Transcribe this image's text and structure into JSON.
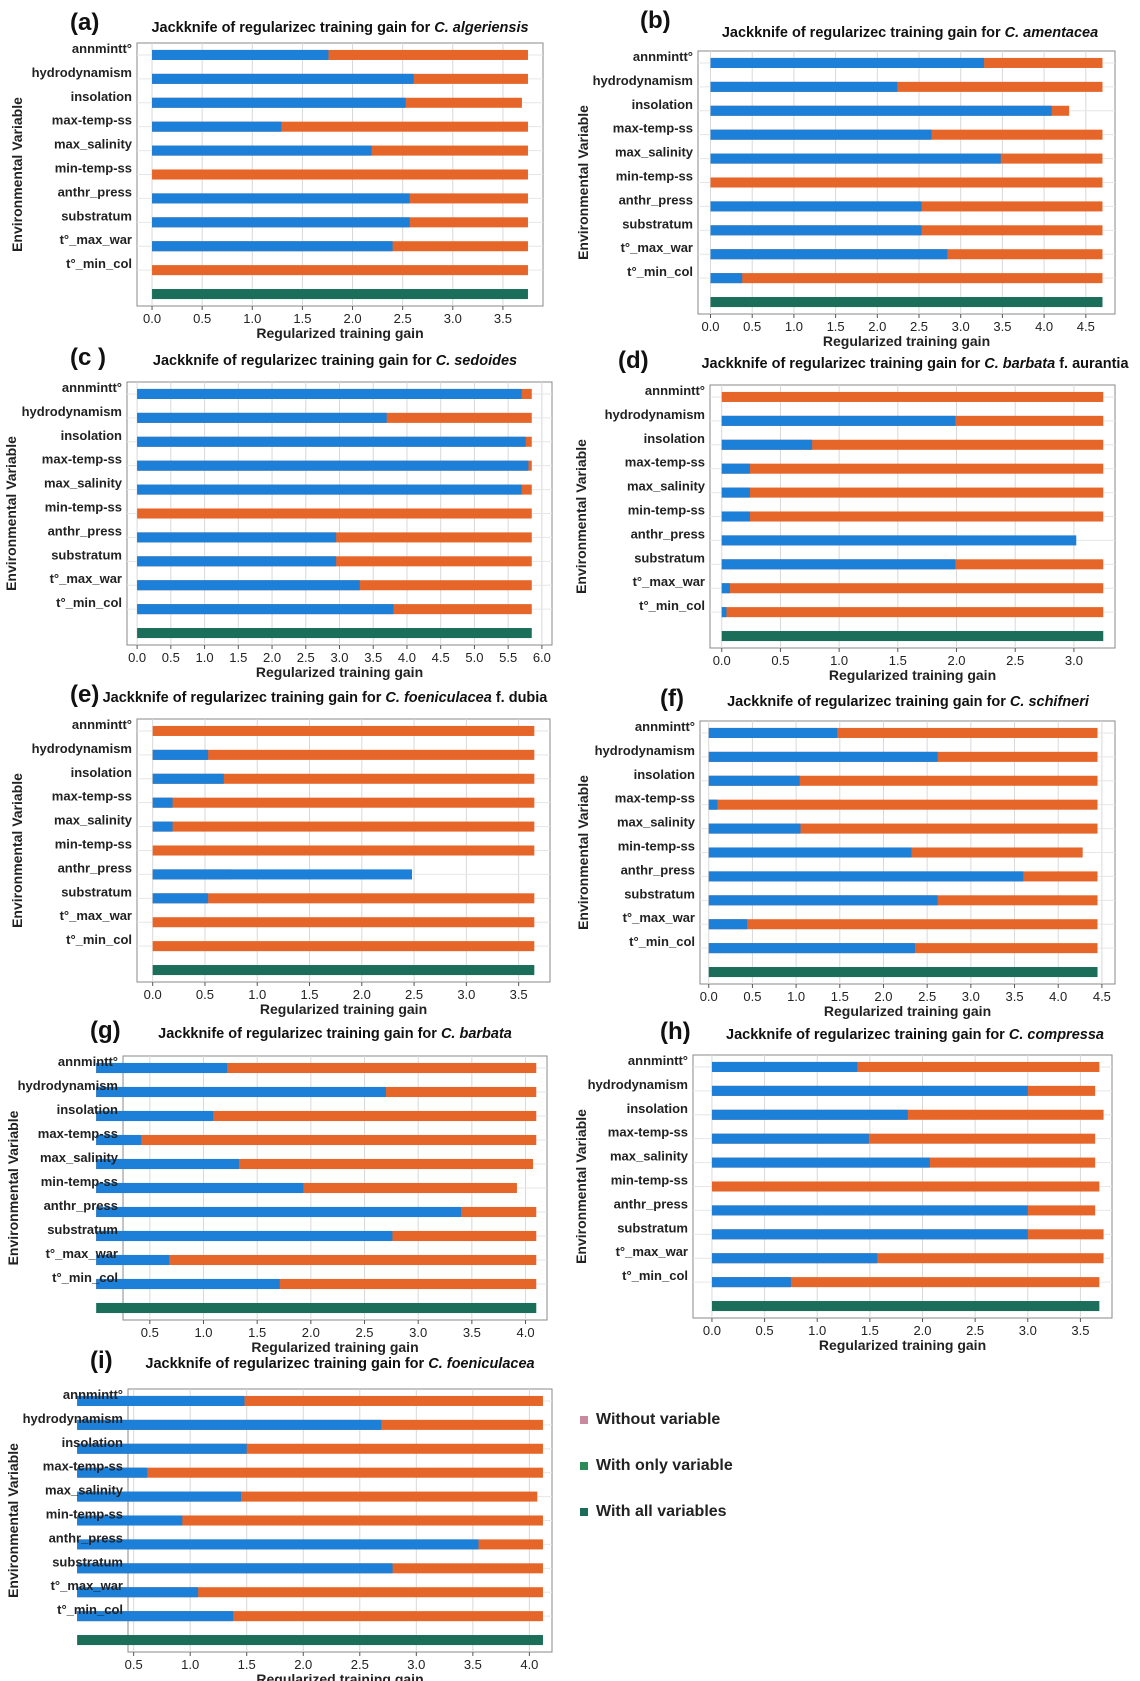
{
  "colors": {
    "without": "#E6662A",
    "with_only": "#1C7FD8",
    "all": "#1A6E5A"
  },
  "chart_data": [
    {
      "type": "bar",
      "panel_label": "(a)",
      "title_prefix": "Jackknife of regularizec training gain for ",
      "species": "C. algeriensis",
      "species_suffix": "",
      "xlabel": "Regularized training gain",
      "ylabel": "Environmental Variable",
      "xlim": [
        -0.15,
        3.9
      ],
      "x_ticks": [
        0.0,
        0.5,
        1.0,
        1.5,
        2.0,
        2.5,
        3.0,
        3.5
      ],
      "x_tick_labels": [
        "0.0",
        "0.5",
        "1.0",
        "1.5",
        "2.0",
        "2.5",
        "3.0",
        "3.5"
      ],
      "show_ylabel": true,
      "all_variables": 3.75,
      "categories": [
        "annmintt°",
        "hydrodynamism",
        "insolation",
        "max-temp-ss",
        "max_salinity",
        "min-temp-ss",
        "anthr_press",
        "substratum",
        "t°_max_war",
        "t°_min_col"
      ],
      "series": [
        {
          "name": "Without variable",
          "values": [
            3.75,
            3.75,
            3.69,
            3.75,
            3.75,
            3.75,
            3.75,
            3.75,
            3.75,
            3.75
          ]
        },
        {
          "name": "With only variable",
          "values": [
            1.76,
            2.61,
            2.53,
            1.29,
            2.19,
            0,
            2.57,
            2.57,
            2.4,
            0
          ]
        }
      ]
    },
    {
      "type": "bar",
      "panel_label": "(b)",
      "title_prefix": "Jackknife of regularizec training gain for ",
      "species": "C. amentacea",
      "species_suffix": "",
      "xlabel": "Regularized training gain",
      "ylabel": "Environmental Variable",
      "xlim": [
        -0.15,
        4.85
      ],
      "x_ticks": [
        0.0,
        0.5,
        1.0,
        1.5,
        2.0,
        2.5,
        3.0,
        3.5,
        4.0,
        4.5
      ],
      "x_tick_labels": [
        "0.0",
        "0.5",
        "1.0",
        "1.5",
        "2.0",
        "2.5",
        "3.0",
        "3.5",
        "4.0",
        "4.5"
      ],
      "show_ylabel": true,
      "all_variables": 4.7,
      "categories": [
        "annmintt°",
        "hydrodynamism",
        "insolation",
        "max-temp-ss",
        "max_salinity",
        "min-temp-ss",
        "anthr_press",
        "substratum",
        "t°_max_war",
        "t°_min_col"
      ],
      "series": [
        {
          "name": "Without variable",
          "values": [
            4.7,
            4.7,
            4.3,
            4.7,
            4.7,
            4.7,
            4.7,
            4.7,
            4.7,
            4.7
          ]
        },
        {
          "name": "With only variable",
          "values": [
            3.28,
            2.24,
            4.09,
            2.65,
            3.48,
            0,
            2.53,
            2.53,
            2.84,
            0.38
          ]
        }
      ]
    },
    {
      "type": "bar",
      "panel_label": "(c )",
      "title_prefix": "Jackknife of regularizec training gain for ",
      "species": "C. sedoides",
      "species_suffix": "",
      "xlabel": "Regularized training gain",
      "ylabel": "Environmental Variable",
      "xlim": [
        -0.15,
        6.15
      ],
      "x_ticks": [
        0.0,
        0.5,
        1.0,
        1.5,
        2.0,
        2.5,
        3.0,
        3.5,
        4.0,
        4.5,
        5.0,
        5.5,
        6.0
      ],
      "x_tick_labels": [
        "0.0",
        "0.5",
        "1.0",
        "1.5",
        "2.0",
        "2.5",
        "3.0",
        "3.5",
        "4.0",
        "4.5",
        "5.0",
        "5.5",
        "6.0"
      ],
      "show_ylabel": true,
      "all_variables": 5.85,
      "categories": [
        "annmintt°",
        "hydrodynamism",
        "insolation",
        "max-temp-ss",
        "max_salinity",
        "min-temp-ss",
        "anthr_press",
        "substratum",
        "t°_max_war",
        "t°_min_col"
      ],
      "series": [
        {
          "name": "Without variable",
          "values": [
            5.85,
            5.85,
            5.85,
            5.85,
            5.85,
            5.85,
            5.85,
            5.85,
            5.85,
            5.85
          ]
        },
        {
          "name": "With only variable",
          "values": [
            5.7,
            3.7,
            5.76,
            5.8,
            5.7,
            0,
            2.95,
            2.95,
            3.3,
            3.8
          ]
        }
      ]
    },
    {
      "type": "bar",
      "panel_label": "(d)",
      "title_prefix": "Jackknife of regularizec training gain for ",
      "species": "C. barbata",
      "species_suffix": " f. aurantia",
      "xlabel": "Regularized training gain",
      "ylabel": "Environmental Variable",
      "xlim": [
        -0.1,
        3.35
      ],
      "x_ticks": [
        0.0,
        0.5,
        1.0,
        1.5,
        2.0,
        2.5,
        3.0
      ],
      "x_tick_labels": [
        "0.0",
        "0.5",
        "1.0",
        "1.5",
        "2.0",
        "2.5",
        "3.0"
      ],
      "show_ylabel": true,
      "all_variables": 3.25,
      "categories": [
        "annmintt°",
        "hydrodynamism",
        "insolation",
        "max-temp-ss",
        "max_salinity",
        "min-temp-ss",
        "anthr_press",
        "substratum",
        "t°_max_war",
        "t°_min_col"
      ],
      "series": [
        {
          "name": "Without variable",
          "values": [
            3.25,
            3.25,
            3.25,
            3.25,
            3.25,
            3.25,
            2.0,
            3.25,
            3.25,
            3.25
          ]
        },
        {
          "name": "With only variable",
          "values": [
            0,
            1.99,
            0.77,
            0.24,
            0.24,
            0.24,
            3.02,
            1.99,
            0.07,
            0.04
          ]
        }
      ]
    },
    {
      "type": "bar",
      "panel_label": "(e)",
      "title_prefix": "Jackknife of regularizec training gain for ",
      "species": "C. foeniculacea",
      "species_suffix": " f. dubia",
      "xlabel": "Regularized training gain",
      "ylabel": "Environmental Variable",
      "xlim": [
        -0.15,
        3.8
      ],
      "x_ticks": [
        0.0,
        0.5,
        1.0,
        1.5,
        2.0,
        2.5,
        3.0,
        3.5
      ],
      "x_tick_labels": [
        "0.0",
        "0.5",
        "1.0",
        "1.5",
        "2.0",
        "2.5",
        "3.0",
        "3.5"
      ],
      "show_ylabel": true,
      "all_variables": 3.65,
      "categories": [
        "annmintt°",
        "hydrodynamism",
        "insolation",
        "max-temp-ss",
        "max_salinity",
        "min-temp-ss",
        "anthr_press",
        "substratum",
        "t°_max_war",
        "t°_min_col"
      ],
      "series": [
        {
          "name": "Without variable",
          "values": [
            3.65,
            3.65,
            3.65,
            3.65,
            3.65,
            3.65,
            0.75,
            3.65,
            3.65,
            3.65
          ]
        },
        {
          "name": "With only variable",
          "values": [
            0,
            0.53,
            0.68,
            0.19,
            0.19,
            0,
            2.48,
            0.53,
            0,
            0
          ]
        }
      ]
    },
    {
      "type": "bar",
      "panel_label": "(f)",
      "title_prefix": "Jackknife of regularizec training gain for ",
      "species": "C. schifneri",
      "species_suffix": "",
      "xlabel": "Regularized training gain",
      "ylabel": "Environmental Variable",
      "xlim": [
        -0.1,
        4.65
      ],
      "x_ticks": [
        0.0,
        0.5,
        1.0,
        1.5,
        2.0,
        2.5,
        3.0,
        3.5,
        4.0,
        4.5
      ],
      "x_tick_labels": [
        "0.0",
        "0.5",
        "1.0",
        "1.5",
        "2.0",
        "2.5",
        "3.0",
        "3.5",
        "4.0",
        "4.5"
      ],
      "show_ylabel": true,
      "all_variables": 4.45,
      "categories": [
        "annmintt°",
        "hydrodynamism",
        "insolation",
        "max-temp-ss",
        "max_salinity",
        "min-temp-ss",
        "anthr_press",
        "substratum",
        "t°_max_war",
        "t°_min_col"
      ],
      "series": [
        {
          "name": "Without variable",
          "values": [
            4.45,
            4.45,
            4.45,
            4.45,
            4.45,
            4.28,
            4.45,
            4.45,
            4.45,
            4.45
          ]
        },
        {
          "name": "With only variable",
          "values": [
            1.47,
            2.62,
            1.04,
            0.1,
            1.05,
            2.32,
            3.6,
            2.62,
            0.44,
            2.36
          ]
        }
      ]
    },
    {
      "type": "bar",
      "panel_label": "(g)",
      "title_prefix": "Jackknife of regularizec training gain for ",
      "species": "C. barbata",
      "species_suffix": "",
      "xlabel": "Regularized training gain",
      "ylabel": "Environmental Variable",
      "xlim": [
        0.25,
        4.2
      ],
      "x_ticks": [
        0.5,
        1.0,
        1.5,
        2.0,
        2.5,
        3.0,
        3.5,
        4.0
      ],
      "x_tick_labels": [
        "0.5",
        "1.0",
        "1.5",
        "2.0",
        "2.5",
        "3.0",
        "3.5",
        "4.0"
      ],
      "show_ylabel": true,
      "all_variables": 4.1,
      "categories": [
        "annmintt°",
        "hydrodynamism",
        "insolation",
        "max-temp-ss",
        "max_salinity",
        "min-temp-ss",
        "anthr_press",
        "substratum",
        "t°_max_war",
        "t°_min_col"
      ],
      "series": [
        {
          "name": "Without variable",
          "values": [
            4.1,
            4.1,
            4.1,
            4.1,
            4.07,
            3.92,
            4.1,
            4.1,
            4.1,
            4.1
          ]
        },
        {
          "name": "With only variable",
          "values": [
            1.22,
            2.7,
            1.09,
            0.42,
            1.33,
            1.93,
            3.4,
            2.76,
            0.68,
            1.71
          ]
        }
      ]
    },
    {
      "type": "bar",
      "panel_label": "(h)",
      "title_prefix": "Jackknife of regularizec training gain for ",
      "species": "C. compressa",
      "species_suffix": "",
      "xlabel": "Regularized training gain",
      "ylabel": "Environmental Variable",
      "xlim": [
        -0.18,
        3.8
      ],
      "x_ticks": [
        0.0,
        0.5,
        1.0,
        1.5,
        2.0,
        2.5,
        3.0,
        3.5
      ],
      "x_tick_labels": [
        "0.0",
        "0.5",
        "1.0",
        "1.5",
        "2.0",
        "2.5",
        "3.0",
        "3.5"
      ],
      "show_ylabel": true,
      "all_variables": 3.68,
      "categories": [
        "annmintt°",
        "hydrodynamism",
        "insolation",
        "max-temp-ss",
        "max_salinity",
        "min-temp-ss",
        "anthr_press",
        "substratum",
        "t°_max_war",
        "t°_min_col"
      ],
      "series": [
        {
          "name": "Without variable",
          "values": [
            3.68,
            3.64,
            3.72,
            3.64,
            3.64,
            3.68,
            3.64,
            3.72,
            3.72,
            3.68
          ]
        },
        {
          "name": "With only variable",
          "values": [
            1.38,
            3.0,
            1.86,
            1.49,
            2.07,
            0.0,
            3.0,
            3.0,
            1.57,
            0.75
          ]
        }
      ]
    },
    {
      "type": "bar",
      "panel_label": "(i)",
      "title_prefix": "Jackknife of regularizec training gain for ",
      "species": "C. foeniculacea",
      "species_suffix": "",
      "xlabel": "Regularized training gain",
      "ylabel": "Environmental Variable",
      "xlim": [
        0.45,
        4.2
      ],
      "x_ticks": [
        0.5,
        1.0,
        1.5,
        2.0,
        2.5,
        3.0,
        3.5,
        4.0
      ],
      "x_tick_labels": [
        "0.5",
        "1.0",
        "1.5",
        "2.0",
        "2.5",
        "3.0",
        "3.5",
        "4.0"
      ],
      "show_ylabel": true,
      "all_variables": 4.12,
      "categories": [
        "annmintt°",
        "hydrodynamism",
        "insolation",
        "max-temp-ss",
        "max_salinity",
        "min-temp-ss",
        "anthr_press",
        "substratum",
        "t°_max_war",
        "t°_min_col"
      ],
      "series": [
        {
          "name": "Without variable",
          "values": [
            4.12,
            4.12,
            4.12,
            4.12,
            4.07,
            4.12,
            4.12,
            4.12,
            4.12,
            4.12
          ]
        },
        {
          "name": "With only variable",
          "values": [
            1.48,
            2.69,
            1.5,
            0.62,
            1.45,
            0.93,
            3.55,
            2.79,
            1.07,
            1.38
          ]
        }
      ]
    }
  ],
  "legend": [
    {
      "label": "Without variable",
      "color": "#C98AA0"
    },
    {
      "label": "With only variable",
      "color": "#2E8B57"
    },
    {
      "label": "With all variables",
      "color": "#1A6E5A"
    }
  ]
}
